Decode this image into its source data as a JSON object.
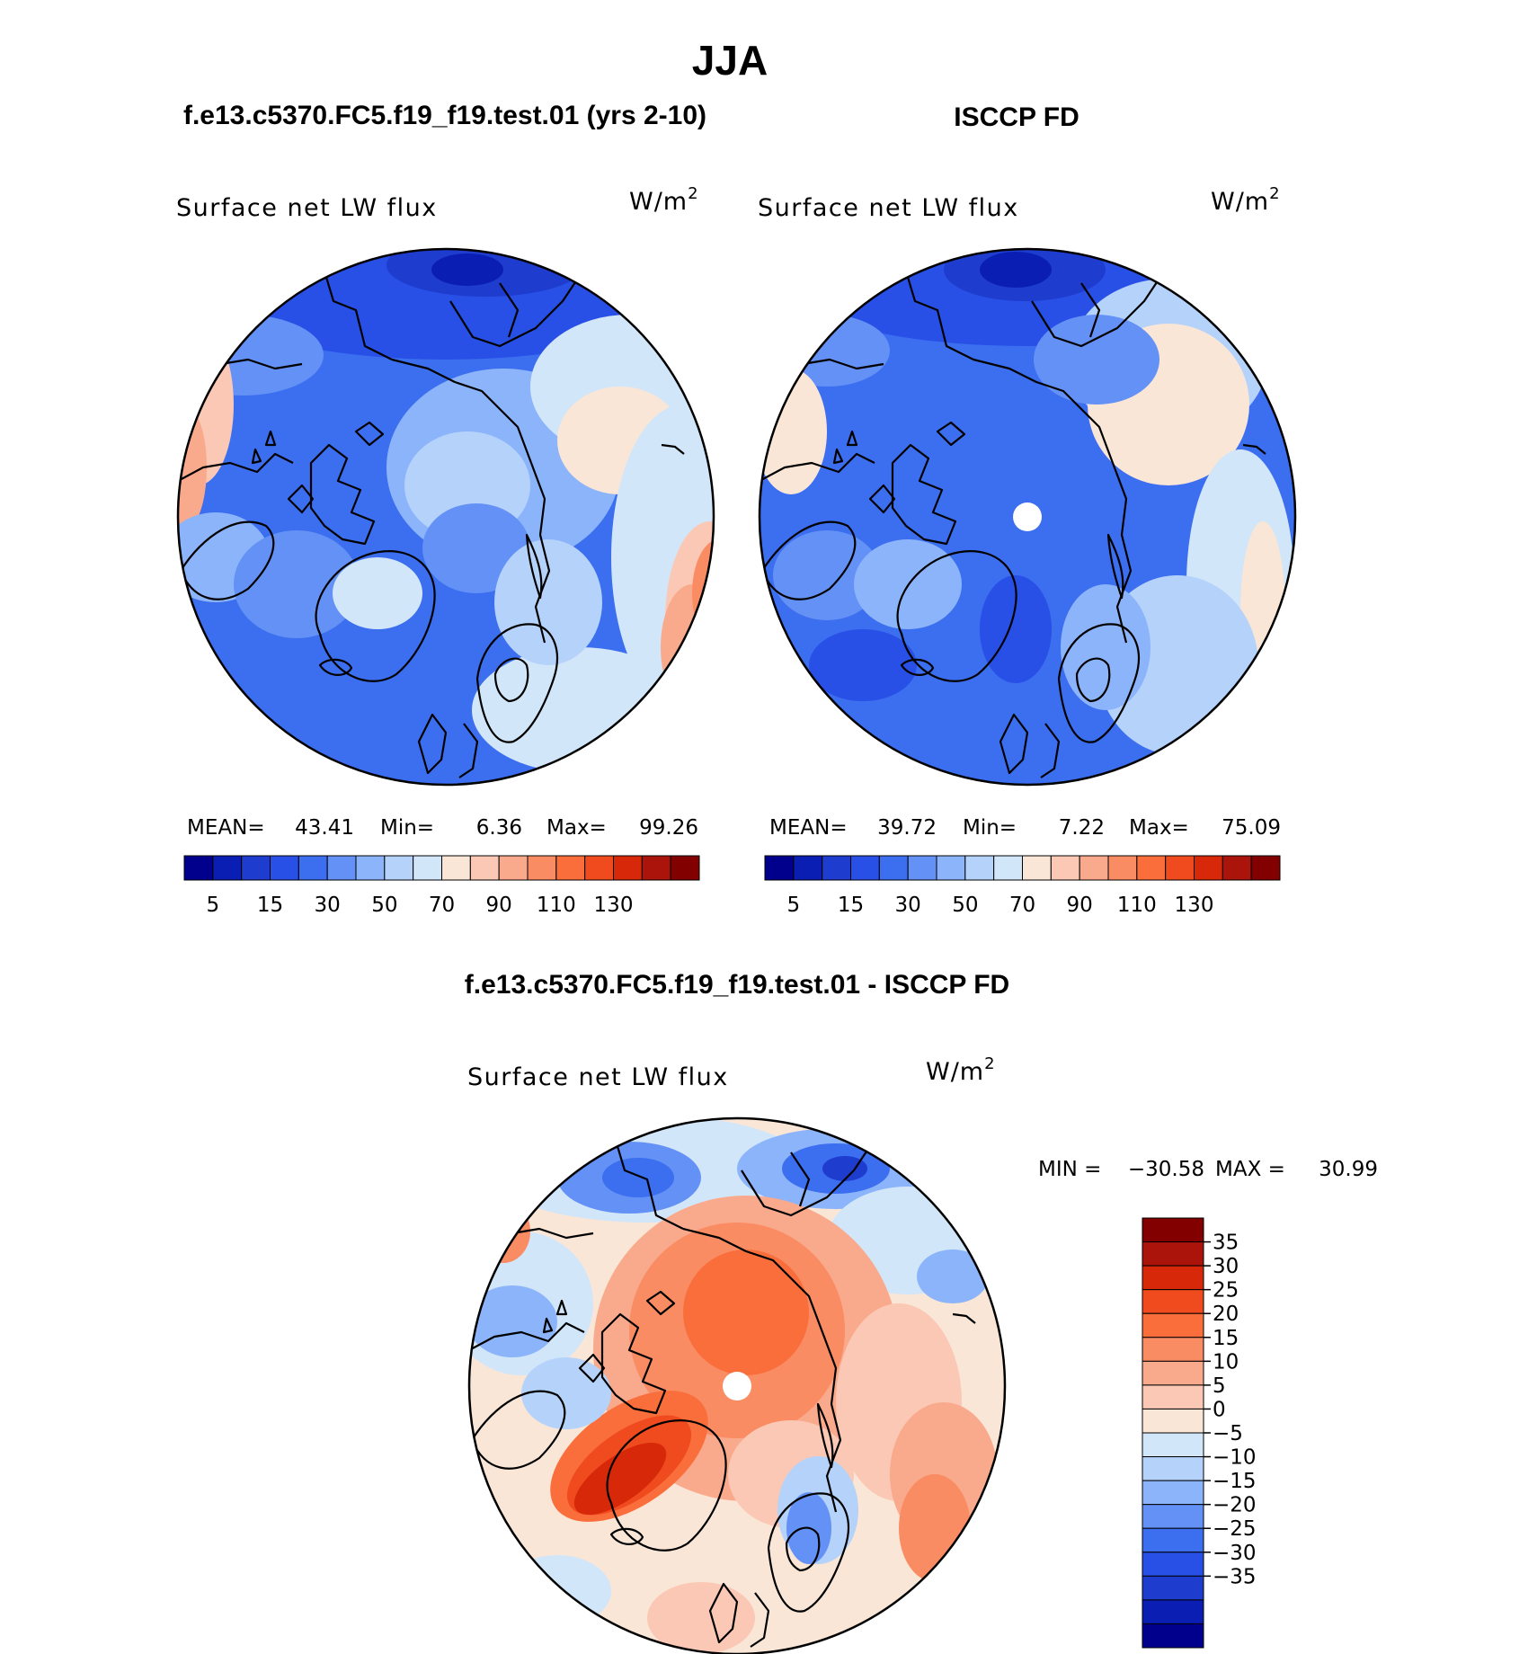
{
  "figure": {
    "season": "JJA",
    "left_panel_title": "f.e13.c5370.FC5.f19_f19.test.01 (yrs 2-10)",
    "right_panel_title": "ISCCP FD",
    "diff_panel_title": "f.e13.c5370.FC5.f19_f19.test.01 - ISCCP FD"
  },
  "maps": [
    {
      "id": "model",
      "variable": "Surface net LW flux",
      "units": "W/m",
      "units_exp": "2",
      "stats": {
        "mean_label": "MEAN=",
        "mean": "43.41",
        "min_label": "Min=",
        "min": "6.36",
        "max_label": "Max=",
        "max": "99.26"
      }
    },
    {
      "id": "obs",
      "variable": "Surface net LW flux",
      "units": "W/m",
      "units_exp": "2",
      "stats": {
        "mean_label": "MEAN=",
        "mean": "39.72",
        "min_label": "Min=",
        "min": "7.22",
        "max_label": "Max=",
        "max": "75.09"
      }
    },
    {
      "id": "diff",
      "variable": "Surface net LW flux",
      "units": "W/m",
      "units_exp": "2",
      "stats": {
        "min_label": "MIN =",
        "min": "−30.58",
        "max_label": "MAX =",
        "max": "30.99"
      }
    }
  ],
  "colorbars": {
    "abs": {
      "colors": [
        "#00008c",
        "#0a1eb4",
        "#1e3ccd",
        "#2850e6",
        "#3c6ef0",
        "#6491f5",
        "#8cb4fa",
        "#b4d2fa",
        "#d2e6fa",
        "#fae6d7",
        "#fac8b4",
        "#faaa8c",
        "#fa8c64",
        "#fa6e3c",
        "#f04b1e",
        "#d7280a",
        "#aa140a",
        "#820000"
      ],
      "tick_labels": [
        "5",
        "15",
        "30",
        "50",
        "70",
        "90",
        "110",
        "130"
      ]
    },
    "diff": {
      "colors": [
        "#00008c",
        "#0a1eb4",
        "#1e3ccd",
        "#2850e6",
        "#3c6ef0",
        "#6491f5",
        "#8cb4fa",
        "#b4d2fa",
        "#d2e6fa",
        "#fae6d7",
        "#fac8b4",
        "#faaa8c",
        "#fa8c64",
        "#fa6e3c",
        "#f04b1e",
        "#d7280a",
        "#aa140a",
        "#820000"
      ],
      "tick_labels": [
        "35",
        "30",
        "25",
        "20",
        "15",
        "10",
        "5",
        "0",
        "−5",
        "−10",
        "−15",
        "−20",
        "−25",
        "−30",
        "−35"
      ]
    }
  }
}
